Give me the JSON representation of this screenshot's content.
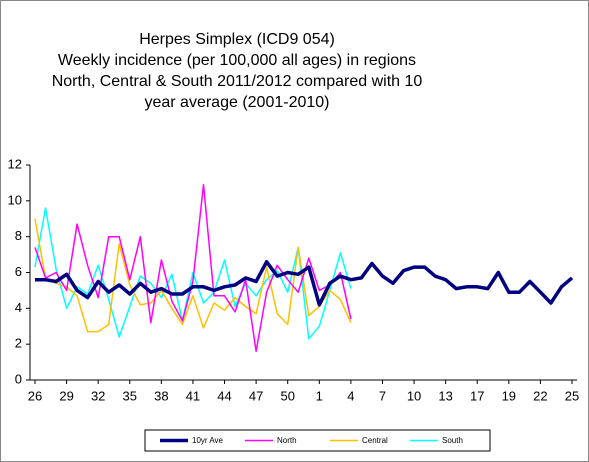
{
  "chart_data": {
    "type": "line",
    "title_lines": [
      "Herpes Simplex (ICD9 054)",
      "Weekly incidence (per 100,000 all ages) in regions",
      "North, Central & South 2011/2012 compared with 10",
      "year average (2001-2010)"
    ],
    "categories": [
      26,
      null,
      null,
      29,
      null,
      null,
      32,
      null,
      null,
      35,
      null,
      null,
      38,
      null,
      null,
      41,
      null,
      null,
      44,
      null,
      null,
      47,
      null,
      null,
      50,
      null,
      null,
      1,
      null,
      null,
      4,
      null,
      null,
      7,
      null,
      null,
      10,
      null,
      null,
      13,
      null,
      null,
      17,
      null,
      null,
      19,
      null,
      null,
      22,
      null,
      null,
      25
    ],
    "series": [
      {
        "name": "10yr Ave",
        "color": "#000080",
        "width": 3.5,
        "values": [
          5.6,
          5.6,
          5.5,
          5.9,
          5.0,
          4.6,
          5.5,
          4.9,
          5.3,
          4.8,
          5.4,
          4.9,
          5.1,
          4.8,
          4.8,
          5.2,
          5.2,
          5.0,
          5.2,
          5.3,
          5.7,
          5.5,
          6.6,
          5.8,
          6.0,
          5.9,
          6.3,
          4.2,
          5.4,
          5.8,
          5.6,
          5.7,
          6.5,
          5.8,
          5.4,
          6.1,
          6.3,
          6.3,
          5.8,
          5.6,
          5.1,
          5.2,
          5.2,
          5.1,
          6.0,
          4.9,
          4.9,
          5.5,
          4.9,
          4.3,
          5.2,
          5.7
        ]
      },
      {
        "name": "North",
        "color": "#ff00ff",
        "width": 1.5,
        "values": [
          7.4,
          5.7,
          6.0,
          5.0,
          8.7,
          6.4,
          4.6,
          8.0,
          8.0,
          5.6,
          8.0,
          3.2,
          6.7,
          4.4,
          3.3,
          5.5,
          10.9,
          4.7,
          4.7,
          3.8,
          5.6,
          1.6,
          4.9,
          6.4,
          5.6,
          4.9,
          6.8,
          5.0,
          5.3,
          6.0,
          3.4,
          null,
          null,
          null,
          null,
          null,
          null,
          null,
          null,
          null,
          null,
          null,
          null,
          null,
          null,
          null,
          null,
          null,
          null,
          null,
          null,
          null
        ]
      },
      {
        "name": "Central",
        "color": "#ffc000",
        "width": 1.5,
        "values": [
          9.0,
          5.7,
          5.4,
          5.2,
          4.7,
          2.7,
          2.7,
          3.1,
          7.6,
          5.3,
          4.2,
          4.3,
          5.0,
          4.0,
          3.1,
          4.7,
          2.9,
          4.3,
          3.9,
          4.6,
          4.1,
          3.7,
          6.3,
          3.7,
          3.1,
          7.4,
          3.6,
          4.1,
          5.0,
          4.5,
          3.2,
          null,
          null,
          null,
          null,
          null,
          null,
          null,
          null,
          null,
          null,
          null,
          null,
          null,
          null,
          null,
          null,
          null,
          null,
          null,
          null,
          null
        ]
      },
      {
        "name": "South",
        "color": "#00ffff",
        "width": 1.5,
        "values": [
          6.3,
          9.6,
          6.2,
          4.0,
          5.2,
          4.8,
          6.4,
          4.5,
          2.4,
          4.1,
          5.8,
          5.4,
          4.6,
          5.9,
          3.3,
          6.0,
          4.3,
          4.9,
          6.7,
          4.1,
          5.4,
          4.7,
          5.6,
          6.1,
          4.9,
          7.4,
          2.3,
          3.0,
          5.0,
          7.1,
          5.1,
          null,
          null,
          null,
          null,
          null,
          null,
          null,
          null,
          null,
          null,
          null,
          null,
          null,
          null,
          null,
          null,
          null,
          null,
          null,
          null,
          null
        ]
      }
    ],
    "ylim": [
      0,
      12
    ],
    "yticks": [
      0,
      2,
      4,
      6,
      8,
      10,
      12
    ],
    "grid": false,
    "legend": "bottom"
  }
}
